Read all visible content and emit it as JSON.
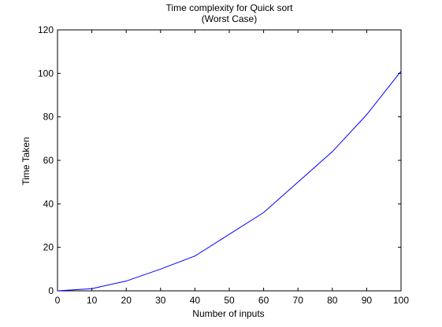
{
  "chart_data": {
    "type": "line",
    "title": "Time complexity for Quick sort",
    "subtitle": "(Worst Case)",
    "xlabel": "Number of inputs",
    "ylabel": "Time Taken",
    "xlim": [
      0,
      100
    ],
    "ylim": [
      0,
      120
    ],
    "xticks": [
      "0",
      "10",
      "20",
      "30",
      "40",
      "50",
      "60",
      "70",
      "80",
      "90",
      "100"
    ],
    "yticks": [
      "0",
      "20",
      "40",
      "60",
      "80",
      "100",
      "120"
    ],
    "grid": false,
    "series": [
      {
        "color": "#0000ff",
        "x": [
          0,
          10,
          20,
          30,
          40,
          50,
          60,
          70,
          80,
          90,
          100
        ],
        "y": [
          0,
          1,
          4.5,
          10,
          16,
          26,
          36,
          50,
          64,
          81,
          101
        ]
      }
    ]
  }
}
